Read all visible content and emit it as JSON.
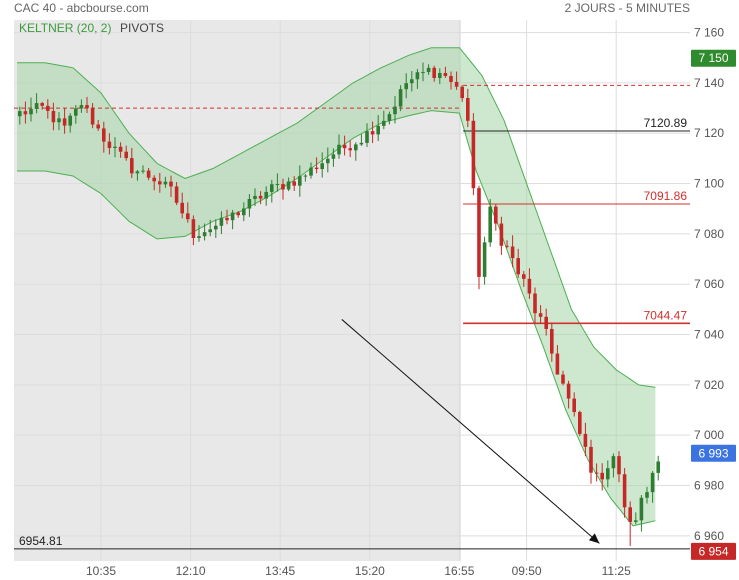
{
  "header": {
    "title": "CAC 40 - abcbourse.com",
    "period": "2 JOURS - 5 MINUTES"
  },
  "legend": {
    "keltner_label": "KELTNER (20, 2)",
    "pivots_label": "PIVOTS"
  },
  "colors": {
    "up_candle": "#2e7d32",
    "down_candle": "#c62828",
    "band_fill": "#a5d6a7",
    "band_line": "#4caf50",
    "prev_day_bg": "#e8e8e8",
    "pivot_red": "#d32f2f",
    "pivot_black": "#222222",
    "badge_green": "#2e8b2e",
    "badge_blue": "#3b73e0",
    "badge_red": "#c62828"
  },
  "chart_data": {
    "type": "candlestick",
    "ylim": [
      6950,
      7165
    ],
    "yticks": [
      7160,
      7140,
      7120,
      7100,
      7080,
      7060,
      7040,
      7020,
      7000,
      6980,
      6960
    ],
    "xticks": [
      "10:35",
      "12:10",
      "13:45",
      "15:20",
      "16:55",
      "09:50",
      "11:25"
    ],
    "n_bars": 115,
    "day_split_bar": 79,
    "close_anchors": [
      [
        0,
        7128
      ],
      [
        4,
        7130
      ],
      [
        8,
        7122
      ],
      [
        11,
        7132
      ],
      [
        15,
        7118
      ],
      [
        20,
        7106
      ],
      [
        24,
        7102
      ],
      [
        27,
        7097
      ],
      [
        31,
        7080
      ],
      [
        36,
        7084
      ],
      [
        41,
        7092
      ],
      [
        45,
        7098
      ],
      [
        50,
        7102
      ],
      [
        56,
        7112
      ],
      [
        61,
        7118
      ],
      [
        66,
        7128
      ],
      [
        69,
        7140
      ],
      [
        73,
        7145
      ],
      [
        76,
        7143
      ],
      [
        79,
        7135
      ],
      [
        80,
        7125
      ],
      [
        82,
        7065
      ],
      [
        84,
        7088
      ],
      [
        87,
        7074
      ],
      [
        90,
        7060
      ],
      [
        93,
        7045
      ],
      [
        97,
        7020
      ],
      [
        100,
        7000
      ],
      [
        103,
        6982
      ],
      [
        106,
        6992
      ],
      [
        109,
        6963
      ],
      [
        112,
        6978
      ],
      [
        114,
        6993
      ]
    ],
    "keltner_upper": [
      [
        0,
        7148
      ],
      [
        5,
        7148
      ],
      [
        10,
        7146
      ],
      [
        15,
        7136
      ],
      [
        20,
        7120
      ],
      [
        25,
        7108
      ],
      [
        30,
        7102
      ],
      [
        35,
        7106
      ],
      [
        40,
        7112
      ],
      [
        45,
        7118
      ],
      [
        50,
        7124
      ],
      [
        55,
        7132
      ],
      [
        60,
        7140
      ],
      [
        65,
        7146
      ],
      [
        70,
        7151
      ],
      [
        74,
        7154
      ],
      [
        79,
        7154
      ],
      [
        83,
        7143
      ],
      [
        87,
        7125
      ],
      [
        91,
        7100
      ],
      [
        95,
        7075
      ],
      [
        99,
        7050
      ],
      [
        103,
        7035
      ],
      [
        107,
        7026
      ],
      [
        111,
        7020
      ],
      [
        114,
        7019
      ]
    ],
    "keltner_lower": [
      [
        0,
        7105
      ],
      [
        5,
        7105
      ],
      [
        10,
        7103
      ],
      [
        15,
        7096
      ],
      [
        20,
        7085
      ],
      [
        25,
        7078
      ],
      [
        30,
        7079
      ],
      [
        35,
        7085
      ],
      [
        40,
        7089
      ],
      [
        45,
        7095
      ],
      [
        50,
        7102
      ],
      [
        55,
        7110
      ],
      [
        60,
        7118
      ],
      [
        65,
        7124
      ],
      [
        70,
        7127
      ],
      [
        74,
        7129
      ],
      [
        79,
        7128
      ],
      [
        82,
        7105
      ],
      [
        86,
        7083
      ],
      [
        90,
        7058
      ],
      [
        94,
        7035
      ],
      [
        98,
        7010
      ],
      [
        102,
        6990
      ],
      [
        106,
        6975
      ],
      [
        110,
        6964
      ],
      [
        114,
        6966
      ]
    ],
    "pivots": [
      {
        "value": 7139,
        "label": "",
        "color": "#d32f2f",
        "dashed": true,
        "scope": "today"
      },
      {
        "value": 7130,
        "label": "",
        "color": "#d32f2f",
        "dashed": true,
        "scope": "yesterday"
      },
      {
        "value": 7120.89,
        "label": "7120.89",
        "color": "#222222",
        "dashed": false,
        "scope": "today"
      },
      {
        "value": 7091.86,
        "label": "7091.86",
        "color": "#d32f2f",
        "dashed": false,
        "scope": "today"
      },
      {
        "value": 7044.47,
        "label": "7044.47",
        "color": "#d32f2f",
        "dashed": false,
        "scope": "today",
        "bold": true
      },
      {
        "value": 6954.81,
        "label": "6954.81",
        "color": "#222222",
        "dashed": false,
        "scope": "all",
        "label_side": "left"
      }
    ],
    "price_badges": [
      {
        "value": 7150,
        "label": "7 150",
        "color": "#2e8b2e"
      },
      {
        "value": 6993,
        "label": "6 993",
        "color": "#3b73e0"
      },
      {
        "value": 6954,
        "label": "6 954",
        "color": "#c62828"
      }
    ],
    "trend_arrow": {
      "from": {
        "bar": 58,
        "value": 7046
      },
      "to": {
        "bar": 104,
        "value": 6957
      }
    }
  }
}
